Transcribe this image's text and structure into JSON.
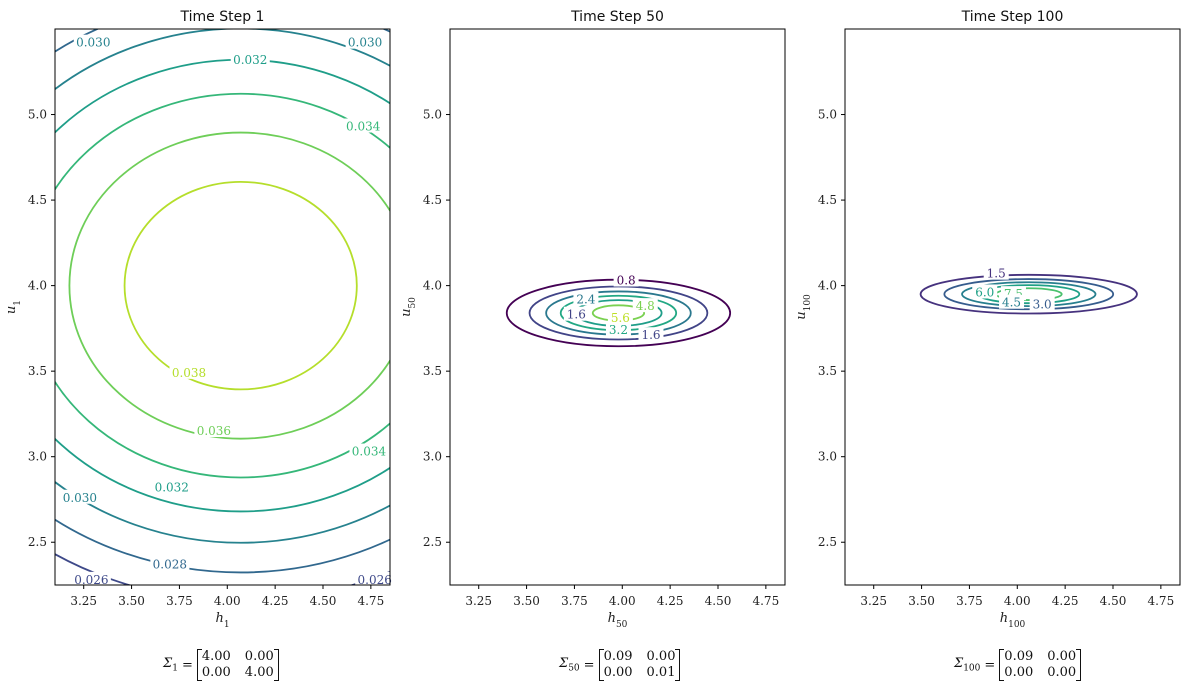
{
  "chart_data": [
    {
      "type": "contour",
      "title": "Time Step 1",
      "xlabel": "h_1",
      "ylabel": "u_1",
      "xlim": [
        3.1,
        4.85
      ],
      "ylim": [
        2.25,
        5.5
      ],
      "xticks": [
        "3.25",
        "3.50",
        "3.75",
        "4.00",
        "4.25",
        "4.50",
        "4.75"
      ],
      "yticks": [
        "2.5",
        "3.0",
        "3.5",
        "4.0",
        "4.5",
        "5.0"
      ],
      "mean": [
        4.07,
        4.0
      ],
      "std": [
        2.0,
        2.0
      ],
      "levels": [
        0.026,
        0.028,
        0.03,
        0.032,
        0.034,
        0.036,
        0.038
      ],
      "level_colors": [
        "#3e4989",
        "#31688e",
        "#26828e",
        "#1f9e89",
        "#35b779",
        "#6ece58",
        "#b5de2b"
      ],
      "contour_labels": [
        {
          "text": "0.030",
          "at": [
            3.3,
            5.42
          ]
        },
        {
          "text": "0.030",
          "at": [
            4.72,
            5.42
          ]
        },
        {
          "text": "0.032",
          "at": [
            4.12,
            5.32
          ]
        },
        {
          "text": "0.034",
          "at": [
            4.71,
            4.93
          ]
        },
        {
          "text": "0.038",
          "at": [
            3.8,
            3.49
          ]
        },
        {
          "text": "0.036",
          "at": [
            3.93,
            3.15
          ]
        },
        {
          "text": "0.034",
          "at": [
            4.74,
            3.03
          ]
        },
        {
          "text": "0.032",
          "at": [
            3.71,
            2.82
          ]
        },
        {
          "text": "0.030",
          "at": [
            3.23,
            2.76
          ]
        },
        {
          "text": "0.028",
          "at": [
            3.7,
            2.37
          ]
        },
        {
          "text": "0.026",
          "at": [
            3.29,
            2.28
          ]
        },
        {
          "text": "0.026",
          "at": [
            4.77,
            2.28
          ]
        }
      ],
      "sigma": {
        "name": "Σ",
        "sub": "1",
        "matrix": [
          [
            "4.00",
            "0.00"
          ],
          [
            "0.00",
            "4.00"
          ]
        ]
      }
    },
    {
      "type": "contour",
      "title": "Time Step 50",
      "xlabel": "h_50",
      "ylabel": "u_50",
      "xlim": [
        3.1,
        4.85
      ],
      "ylim": [
        2.25,
        5.5
      ],
      "xticks": [
        "3.25",
        "3.50",
        "3.75",
        "4.00",
        "4.25",
        "4.50",
        "4.75"
      ],
      "yticks": [
        "2.5",
        "3.0",
        "3.5",
        "4.0",
        "4.5",
        "5.0"
      ],
      "mean": [
        3.98,
        3.84
      ],
      "std": [
        0.3,
        0.1
      ],
      "levels": [
        0.8,
        1.6,
        2.4,
        3.2,
        4.0,
        4.8,
        5.6
      ],
      "level_colors": [
        "#440154",
        "#414487",
        "#2a788e",
        "#22a884",
        "#1f9e89",
        "#7ad151",
        "#bddf26"
      ],
      "contour_labels": [
        {
          "text": "0.8",
          "at": [
            4.02,
            4.03
          ]
        },
        {
          "text": "2.4",
          "at": [
            3.81,
            3.92
          ]
        },
        {
          "text": "1.6",
          "at": [
            3.76,
            3.83
          ]
        },
        {
          "text": "4.8",
          "at": [
            4.12,
            3.88
          ]
        },
        {
          "text": "5.6",
          "at": [
            3.99,
            3.81
          ]
        },
        {
          "text": "3.2",
          "at": [
            3.98,
            3.74
          ]
        },
        {
          "text": "1.6",
          "at": [
            4.15,
            3.71
          ]
        }
      ],
      "sigma": {
        "name": "Σ",
        "sub": "50",
        "matrix": [
          [
            "0.09",
            "0.00"
          ],
          [
            "0.00",
            "0.01"
          ]
        ]
      }
    },
    {
      "type": "contour",
      "title": "Time Step 100",
      "xlabel": "h_100",
      "ylabel": "u_100",
      "xlim": [
        3.1,
        4.85
      ],
      "ylim": [
        2.25,
        5.5
      ],
      "xticks": [
        "3.25",
        "3.50",
        "3.75",
        "4.00",
        "4.25",
        "4.50",
        "4.75"
      ],
      "yticks": [
        "2.5",
        "3.0",
        "3.5",
        "4.0",
        "4.5",
        "5.0"
      ],
      "mean": [
        4.06,
        3.95
      ],
      "std": [
        0.3,
        0.06
      ],
      "levels": [
        1.5,
        3.0,
        4.5,
        6.0,
        7.5
      ],
      "level_colors": [
        "#46327e",
        "#365c8d",
        "#277f8e",
        "#1fa187",
        "#4ac16d"
      ],
      "contour_labels": [
        {
          "text": "1.5",
          "at": [
            3.89,
            4.07
          ]
        },
        {
          "text": "6.0",
          "at": [
            3.83,
            3.96
          ]
        },
        {
          "text": "7.5",
          "at": [
            3.98,
            3.95
          ]
        },
        {
          "text": "4.5",
          "at": [
            3.97,
            3.9
          ]
        },
        {
          "text": "3.0",
          "at": [
            4.13,
            3.89
          ]
        }
      ],
      "sigma": {
        "name": "Σ",
        "sub": "100",
        "matrix": [
          [
            "0.09",
            "0.00"
          ],
          [
            "0.00",
            "0.00"
          ]
        ]
      }
    }
  ]
}
